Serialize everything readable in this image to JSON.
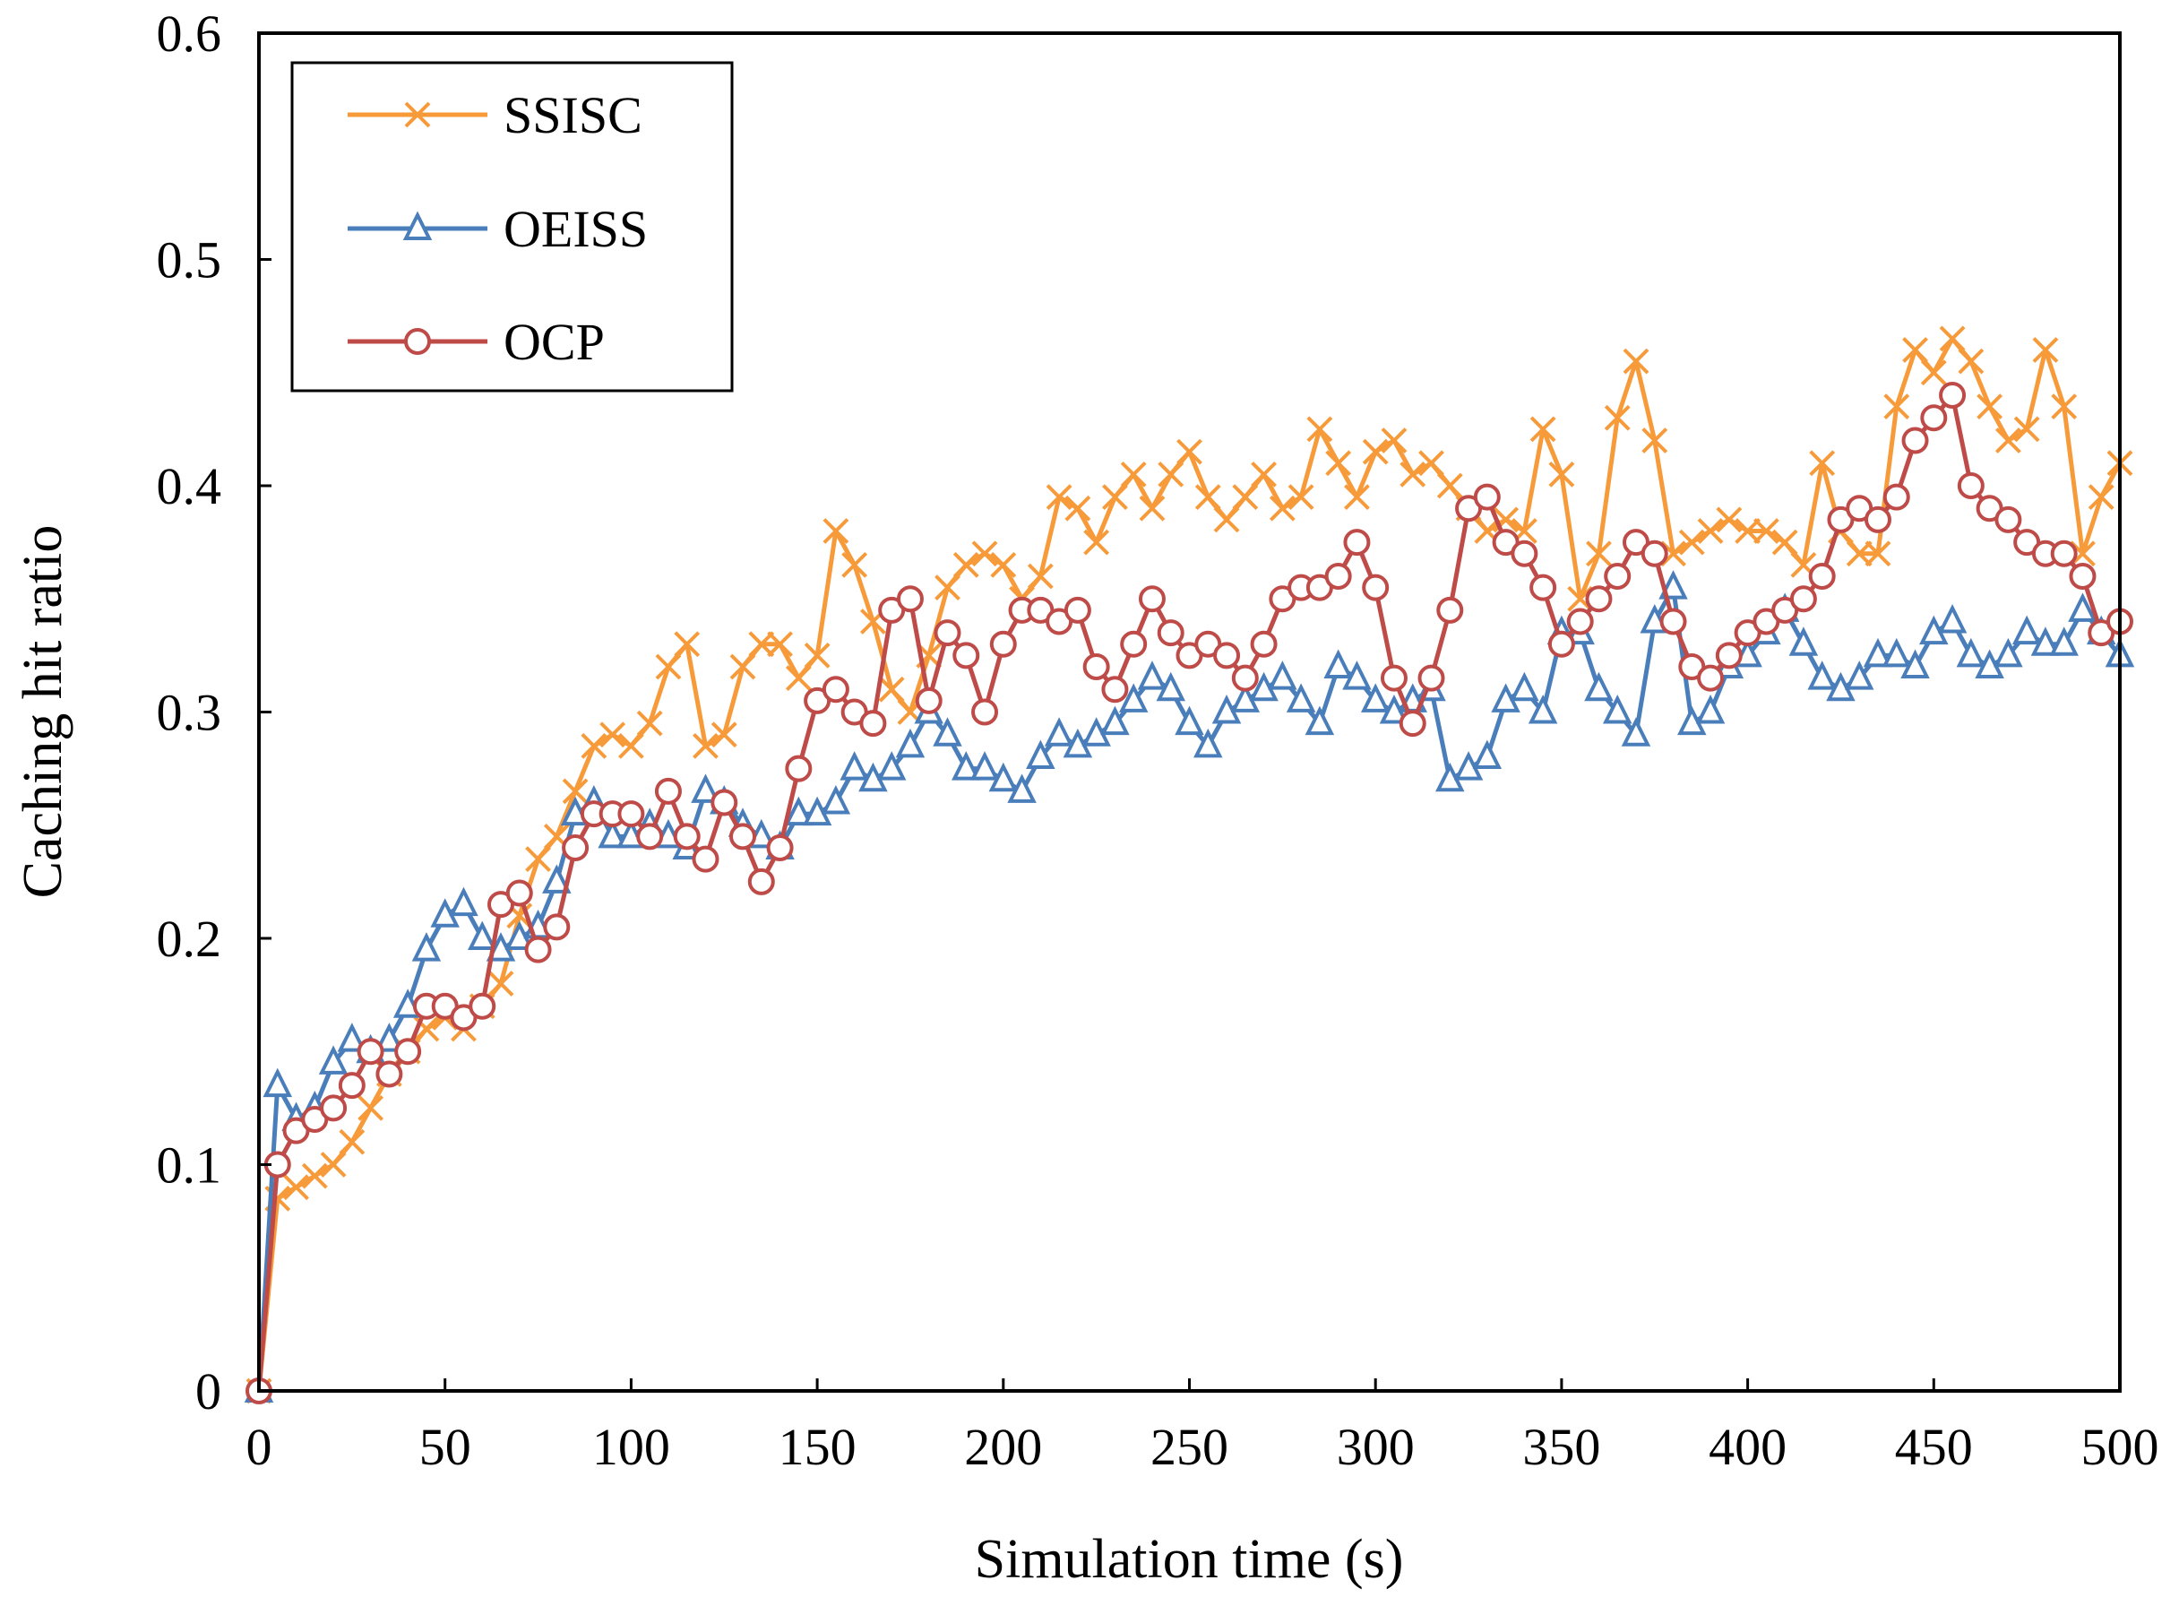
{
  "chart_data": {
    "type": "line",
    "title": "",
    "xlabel": "Simulation time (s)",
    "ylabel": "Caching hit ratio",
    "xlim": [
      0,
      500
    ],
    "ylim": [
      0,
      0.6
    ],
    "xticks": [
      0,
      50,
      100,
      150,
      200,
      250,
      300,
      350,
      400,
      450,
      500
    ],
    "yticks": [
      0,
      0.1,
      0.2,
      0.3,
      0.4,
      0.5,
      0.6
    ],
    "ytick_labels": [
      "0",
      "0.1",
      "0.2",
      "0.3",
      "0.4",
      "0.5",
      "0.6"
    ],
    "grid": false,
    "legend_position": "top-left",
    "x": [
      0,
      5,
      10,
      15,
      20,
      25,
      30,
      35,
      40,
      45,
      50,
      55,
      60,
      65,
      70,
      75,
      80,
      85,
      90,
      95,
      100,
      105,
      110,
      115,
      120,
      125,
      130,
      135,
      140,
      145,
      150,
      155,
      160,
      165,
      170,
      175,
      180,
      185,
      190,
      195,
      200,
      205,
      210,
      215,
      220,
      225,
      230,
      235,
      240,
      245,
      250,
      255,
      260,
      265,
      270,
      275,
      280,
      285,
      290,
      295,
      300,
      305,
      310,
      315,
      320,
      325,
      330,
      335,
      340,
      345,
      350,
      355,
      360,
      365,
      370,
      375,
      380,
      385,
      390,
      395,
      400,
      405,
      410,
      415,
      420,
      425,
      430,
      435,
      440,
      445,
      450,
      455,
      460,
      465,
      470,
      475,
      480,
      485,
      490,
      495,
      500
    ],
    "series": [
      {
        "name": "SSISC",
        "color": "#F79A3A",
        "marker": "x",
        "values": [
          0.0,
          0.085,
          0.09,
          0.095,
          0.1,
          0.11,
          0.125,
          0.14,
          0.15,
          0.16,
          0.165,
          0.16,
          0.17,
          0.18,
          0.21,
          0.235,
          0.245,
          0.265,
          0.285,
          0.29,
          0.285,
          0.295,
          0.32,
          0.33,
          0.285,
          0.29,
          0.32,
          0.33,
          0.33,
          0.315,
          0.325,
          0.38,
          0.365,
          0.34,
          0.31,
          0.3,
          0.325,
          0.355,
          0.365,
          0.37,
          0.365,
          0.35,
          0.36,
          0.395,
          0.39,
          0.375,
          0.395,
          0.405,
          0.39,
          0.405,
          0.415,
          0.395,
          0.385,
          0.395,
          0.405,
          0.39,
          0.395,
          0.425,
          0.41,
          0.395,
          0.415,
          0.42,
          0.405,
          0.41,
          0.4,
          0.39,
          0.38,
          0.385,
          0.38,
          0.425,
          0.405,
          0.35,
          0.37,
          0.43,
          0.455,
          0.42,
          0.37,
          0.375,
          0.38,
          0.385,
          0.38,
          0.38,
          0.375,
          0.365,
          0.41,
          0.38,
          0.37,
          0.37,
          0.435,
          0.46,
          0.45,
          0.465,
          0.455,
          0.435,
          0.42,
          0.425,
          0.46,
          0.435,
          0.37,
          0.395,
          0.41
        ]
      },
      {
        "name": "OEISS",
        "color": "#4A7EBB",
        "marker": "triangle",
        "values": [
          0.0,
          0.135,
          0.12,
          0.125,
          0.145,
          0.155,
          0.15,
          0.155,
          0.17,
          0.195,
          0.21,
          0.215,
          0.2,
          0.195,
          0.2,
          0.205,
          0.225,
          0.255,
          0.26,
          0.245,
          0.245,
          0.25,
          0.245,
          0.24,
          0.265,
          0.26,
          0.25,
          0.245,
          0.24,
          0.255,
          0.255,
          0.26,
          0.275,
          0.27,
          0.275,
          0.285,
          0.3,
          0.29,
          0.275,
          0.275,
          0.27,
          0.265,
          0.28,
          0.29,
          0.285,
          0.29,
          0.295,
          0.305,
          0.315,
          0.31,
          0.295,
          0.285,
          0.3,
          0.305,
          0.31,
          0.315,
          0.305,
          0.295,
          0.32,
          0.315,
          0.305,
          0.3,
          0.305,
          0.31,
          0.27,
          0.275,
          0.28,
          0.305,
          0.31,
          0.3,
          0.335,
          0.335,
          0.31,
          0.3,
          0.29,
          0.34,
          0.355,
          0.295,
          0.3,
          0.32,
          0.325,
          0.335,
          0.345,
          0.33,
          0.315,
          0.31,
          0.315,
          0.325,
          0.325,
          0.32,
          0.335,
          0.34,
          0.325,
          0.32,
          0.325,
          0.335,
          0.33,
          0.33,
          0.345,
          0.335,
          0.325
        ]
      },
      {
        "name": "OCP",
        "color": "#BE4B48",
        "marker": "circle",
        "values": [
          0.0,
          0.1,
          0.115,
          0.12,
          0.125,
          0.135,
          0.15,
          0.14,
          0.15,
          0.17,
          0.17,
          0.165,
          0.17,
          0.215,
          0.22,
          0.195,
          0.205,
          0.24,
          0.255,
          0.255,
          0.255,
          0.245,
          0.265,
          0.245,
          0.235,
          0.26,
          0.245,
          0.225,
          0.24,
          0.275,
          0.305,
          0.31,
          0.3,
          0.295,
          0.345,
          0.35,
          0.305,
          0.335,
          0.325,
          0.3,
          0.33,
          0.345,
          0.345,
          0.34,
          0.345,
          0.32,
          0.31,
          0.33,
          0.35,
          0.335,
          0.325,
          0.33,
          0.325,
          0.315,
          0.33,
          0.35,
          0.355,
          0.355,
          0.36,
          0.375,
          0.355,
          0.315,
          0.295,
          0.315,
          0.345,
          0.39,
          0.395,
          0.375,
          0.37,
          0.355,
          0.33,
          0.34,
          0.35,
          0.36,
          0.375,
          0.37,
          0.34,
          0.32,
          0.315,
          0.325,
          0.335,
          0.34,
          0.345,
          0.35,
          0.36,
          0.385,
          0.39,
          0.385,
          0.395,
          0.42,
          0.43,
          0.44,
          0.4,
          0.39,
          0.385,
          0.375,
          0.37,
          0.37,
          0.36,
          0.335,
          0.34
        ]
      }
    ]
  }
}
